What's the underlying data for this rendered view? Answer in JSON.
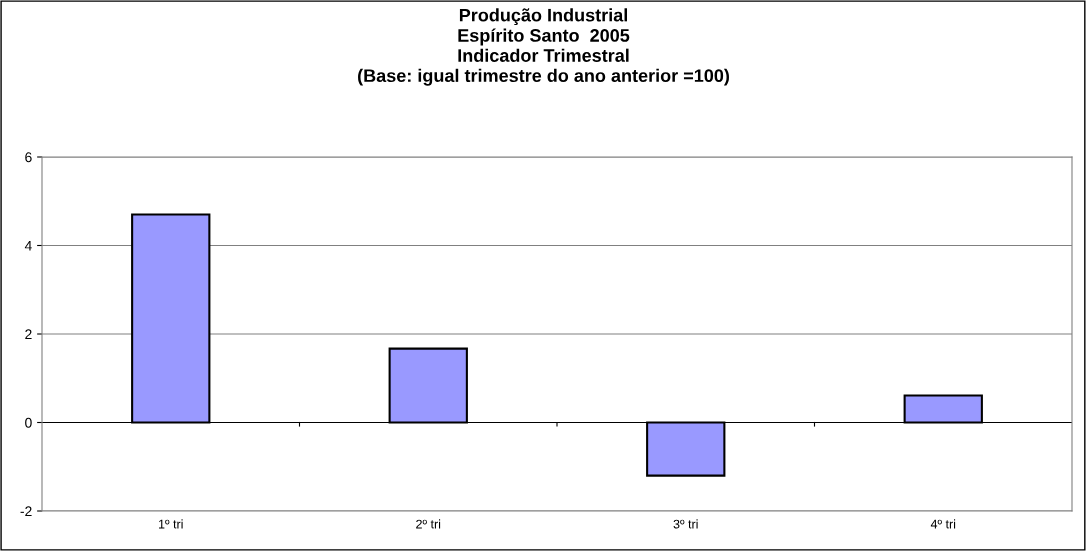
{
  "chart_data": {
    "type": "bar",
    "title": "Produção Industrial\nEspírito Santo  2005\nIndicador Trimestral\n(Base: igual trimestre do ano anterior =100)",
    "categories": [
      "1º tri",
      "2º tri",
      "3º tri",
      "4º tri"
    ],
    "values": [
      4.7,
      1.67,
      -1.2,
      0.61
    ],
    "color": "#9999ff",
    "ylim": [
      -2,
      6
    ],
    "yticks": [
      -2,
      0,
      2,
      4,
      6
    ],
    "grid": "y"
  }
}
